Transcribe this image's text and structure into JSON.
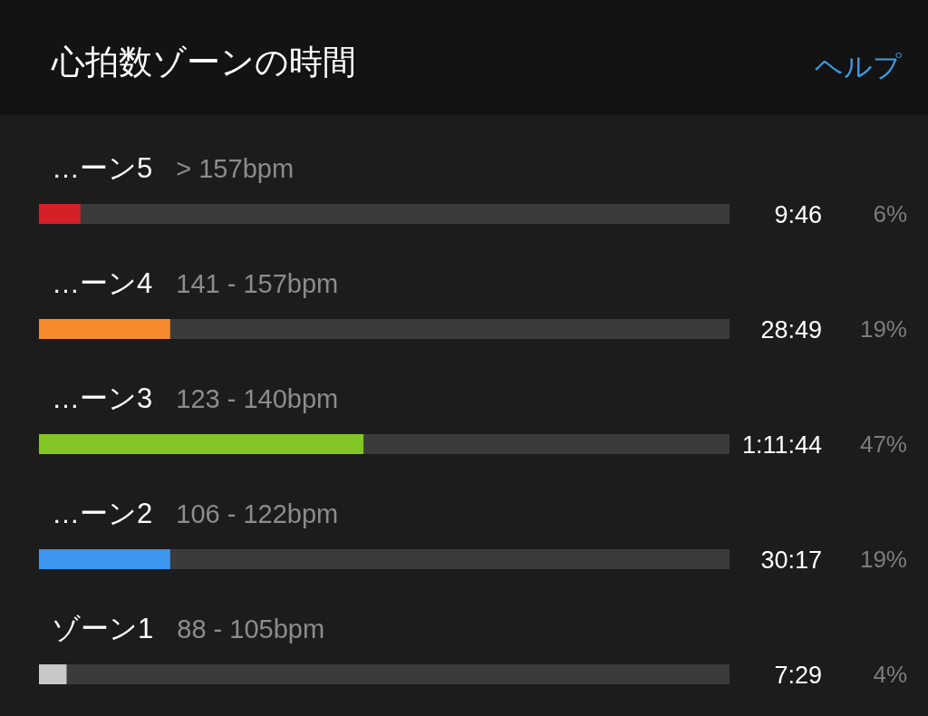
{
  "chart_data": {
    "type": "bar",
    "orientation": "horizontal",
    "title": "心拍数ゾーンの時間",
    "categories": [
      "…ーン5",
      "…ーン4",
      "…ーン3",
      "…ーン2",
      "ゾーン1"
    ],
    "values": [
      6,
      19,
      47,
      19,
      4
    ],
    "colors": [
      "#d42027",
      "#f58b2d",
      "#82c524",
      "#3d96ef",
      "#c8c8c8"
    ],
    "value_labels": [
      "6%",
      "19%",
      "47%",
      "19%",
      "4%"
    ],
    "xlim": [
      0,
      100
    ],
    "tick_labels": false,
    "annotations": [
      "ヘルプ",
      "> 157bpm",
      "9:46",
      "141 - 157bpm",
      "28:49",
      "123 - 140bpm",
      "1:11:44",
      "106 - 122bpm",
      "30:17",
      "88 - 105bpm",
      "7:29"
    ]
  }
}
